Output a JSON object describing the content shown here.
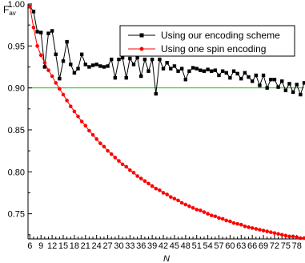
{
  "chart_data": {
    "type": "line",
    "title": "",
    "xlabel": "N",
    "ylabel": "F",
    "ylabel_sub": "av",
    "xlim": [
      5.5,
      80
    ],
    "ylim": [
      0.72,
      1.0
    ],
    "x_ticks": [
      6,
      9,
      12,
      15,
      18,
      21,
      24,
      27,
      30,
      33,
      36,
      39,
      42,
      45,
      48,
      51,
      54,
      57,
      60,
      63,
      66,
      69,
      72,
      75,
      78
    ],
    "y_ticks": [
      0.75,
      0.8,
      0.85,
      0.9,
      0.95,
      1.0
    ],
    "x_tick_labels": [
      "6",
      "9",
      "12",
      "15",
      "18",
      "21",
      "24",
      "27",
      "30",
      "33",
      "36",
      "39",
      "42",
      "45",
      "48",
      "51",
      "54",
      "57",
      "60",
      "63",
      "66",
      "69",
      "72",
      "75",
      "78"
    ],
    "y_tick_labels": [
      "0.75",
      "0.80",
      "0.85",
      "0.90",
      "0.95",
      "1.00"
    ],
    "legend_position": "top-right",
    "reference_line": {
      "y": 0.9,
      "color": "#00cc00"
    },
    "series": [
      {
        "name": "Using our encoding scheme",
        "color": "#000000",
        "marker": "square",
        "x": [
          6,
          7,
          8,
          9,
          10,
          11,
          12,
          13,
          14,
          15,
          16,
          17,
          18,
          19,
          20,
          21,
          22,
          23,
          24,
          25,
          26,
          27,
          28,
          29,
          30,
          31,
          32,
          33,
          34,
          35,
          36,
          37,
          38,
          39,
          40,
          41,
          42,
          43,
          44,
          45,
          46,
          47,
          48,
          49,
          50,
          51,
          52,
          53,
          54,
          55,
          56,
          57,
          58,
          59,
          60,
          61,
          62,
          63,
          64,
          65,
          66,
          67,
          68,
          69,
          70,
          71,
          72,
          73,
          74,
          75,
          76,
          77,
          78,
          79,
          80
        ],
        "values": [
          0.997,
          0.991,
          0.967,
          0.966,
          0.925,
          0.965,
          0.968,
          0.94,
          0.911,
          0.932,
          0.955,
          0.928,
          0.918,
          0.923,
          0.94,
          0.928,
          0.925,
          0.927,
          0.928,
          0.926,
          0.925,
          0.926,
          0.934,
          0.912,
          0.934,
          0.936,
          0.912,
          0.935,
          0.928,
          0.936,
          0.914,
          0.934,
          0.92,
          0.934,
          0.893,
          0.934,
          0.923,
          0.93,
          0.923,
          0.926,
          0.92,
          0.923,
          0.91,
          0.92,
          0.924,
          0.923,
          0.921,
          0.92,
          0.922,
          0.92,
          0.921,
          0.915,
          0.92,
          0.918,
          0.912,
          0.92,
          0.917,
          0.911,
          0.918,
          0.913,
          0.908,
          0.915,
          0.903,
          0.915,
          0.9,
          0.91,
          0.91,
          0.901,
          0.908,
          0.897,
          0.905,
          0.895,
          0.904,
          0.892,
          0.906
        ]
      },
      {
        "name": "Using one spin encoding",
        "color": "#ff0000",
        "marker": "circle",
        "x": [
          6,
          7,
          8,
          9,
          10,
          11,
          12,
          13,
          14,
          15,
          16,
          17,
          18,
          19,
          20,
          21,
          22,
          23,
          24,
          25,
          26,
          27,
          28,
          29,
          30,
          31,
          32,
          33,
          34,
          35,
          36,
          37,
          38,
          39,
          40,
          41,
          42,
          43,
          44,
          45,
          46,
          47,
          48,
          49,
          50,
          51,
          52,
          53,
          54,
          55,
          56,
          57,
          58,
          59,
          60,
          61,
          62,
          63,
          64,
          65,
          66,
          67,
          68,
          69,
          70,
          71,
          72,
          73,
          74,
          75,
          76,
          77,
          78,
          79,
          80
        ],
        "values": [
          0.997,
          0.972,
          0.95,
          0.939,
          0.93,
          0.921,
          0.914,
          0.906,
          0.899,
          0.892,
          0.885,
          0.878,
          0.872,
          0.866,
          0.86,
          0.855,
          0.849,
          0.844,
          0.839,
          0.834,
          0.83,
          0.825,
          0.821,
          0.817,
          0.813,
          0.809,
          0.806,
          0.802,
          0.799,
          0.795,
          0.792,
          0.789,
          0.786,
          0.783,
          0.78,
          0.778,
          0.775,
          0.773,
          0.77,
          0.768,
          0.766,
          0.763,
          0.761,
          0.759,
          0.757,
          0.755,
          0.754,
          0.752,
          0.75,
          0.748,
          0.747,
          0.745,
          0.744,
          0.742,
          0.741,
          0.739,
          0.738,
          0.737,
          0.735,
          0.734,
          0.733,
          0.732,
          0.731,
          0.73,
          0.729,
          0.728,
          0.727,
          0.726,
          0.725,
          0.724,
          0.723,
          0.723,
          0.722,
          0.721,
          0.721
        ]
      }
    ]
  }
}
